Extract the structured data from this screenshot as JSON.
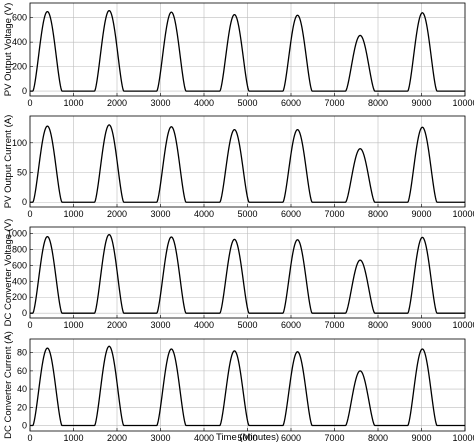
{
  "chart_data": [
    {
      "type": "line",
      "ylabel": "PV Output Voltage (V)",
      "xlabel": "",
      "xlim": [
        0,
        10000
      ],
      "ylim": [
        -40,
        720
      ],
      "x_ticks": [
        "0",
        "1000",
        "2000",
        "3000",
        "4000",
        "5000",
        "6000",
        "7000",
        "8000",
        "9000",
        "10000"
      ],
      "y_ticks": [
        "0",
        "200",
        "400",
        "600"
      ],
      "grid": true,
      "series": [
        {
          "peaks": [
            {
              "x": 400,
              "y": 650
            },
            {
              "x": 1820,
              "y": 658
            },
            {
              "x": 3250,
              "y": 645
            },
            {
              "x": 4700,
              "y": 625
            },
            {
              "x": 6150,
              "y": 620
            },
            {
              "x": 7590,
              "y": 455
            },
            {
              "x": 9020,
              "y": 640
            }
          ]
        }
      ]
    },
    {
      "type": "line",
      "ylabel": "PV Output Current (A)",
      "xlabel": "",
      "xlim": [
        0,
        10000
      ],
      "ylim": [
        -8,
        145
      ],
      "x_ticks": [
        "0",
        "1000",
        "2000",
        "3000",
        "4000",
        "5000",
        "6000",
        "7000",
        "8000",
        "9000",
        "10000"
      ],
      "y_ticks": [
        "0",
        "50",
        "100"
      ],
      "grid": true,
      "series": [
        {
          "peaks": [
            {
              "x": 400,
              "y": 128
            },
            {
              "x": 1820,
              "y": 130
            },
            {
              "x": 3250,
              "y": 127
            },
            {
              "x": 4700,
              "y": 122
            },
            {
              "x": 6150,
              "y": 122
            },
            {
              "x": 7590,
              "y": 90
            },
            {
              "x": 9020,
              "y": 126
            }
          ]
        }
      ]
    },
    {
      "type": "line",
      "ylabel": "DC Converter Voltage (V)",
      "xlabel": "",
      "xlim": [
        0,
        10000
      ],
      "ylim": [
        -60,
        1080
      ],
      "x_ticks": [
        "0",
        "1000",
        "2000",
        "3000",
        "4000",
        "5000",
        "6000",
        "7000",
        "8000",
        "9000",
        "10000"
      ],
      "y_ticks": [
        "0",
        "200",
        "400",
        "600",
        "800",
        "1000"
      ],
      "grid": true,
      "series": [
        {
          "peaks": [
            {
              "x": 400,
              "y": 960
            },
            {
              "x": 1820,
              "y": 985
            },
            {
              "x": 3250,
              "y": 955
            },
            {
              "x": 4700,
              "y": 925
            },
            {
              "x": 6150,
              "y": 920
            },
            {
              "x": 7590,
              "y": 665
            },
            {
              "x": 9020,
              "y": 950
            }
          ]
        }
      ]
    },
    {
      "type": "line",
      "ylabel": "DC Converter Current (A)",
      "xlabel": "Time (Minutes)",
      "xlim": [
        0,
        10000
      ],
      "ylim": [
        -6,
        95
      ],
      "x_ticks": [
        "0",
        "1000",
        "2000",
        "3000",
        "4000",
        "5000",
        "6000",
        "7000",
        "8000",
        "9000",
        "10000"
      ],
      "y_ticks": [
        "0",
        "20",
        "40",
        "60",
        "80"
      ],
      "grid": true,
      "series": [
        {
          "peaks": [
            {
              "x": 400,
              "y": 85
            },
            {
              "x": 1820,
              "y": 87
            },
            {
              "x": 3250,
              "y": 84
            },
            {
              "x": 4700,
              "y": 82
            },
            {
              "x": 6150,
              "y": 81
            },
            {
              "x": 7590,
              "y": 60
            },
            {
              "x": 9020,
              "y": 84
            }
          ]
        }
      ]
    }
  ]
}
